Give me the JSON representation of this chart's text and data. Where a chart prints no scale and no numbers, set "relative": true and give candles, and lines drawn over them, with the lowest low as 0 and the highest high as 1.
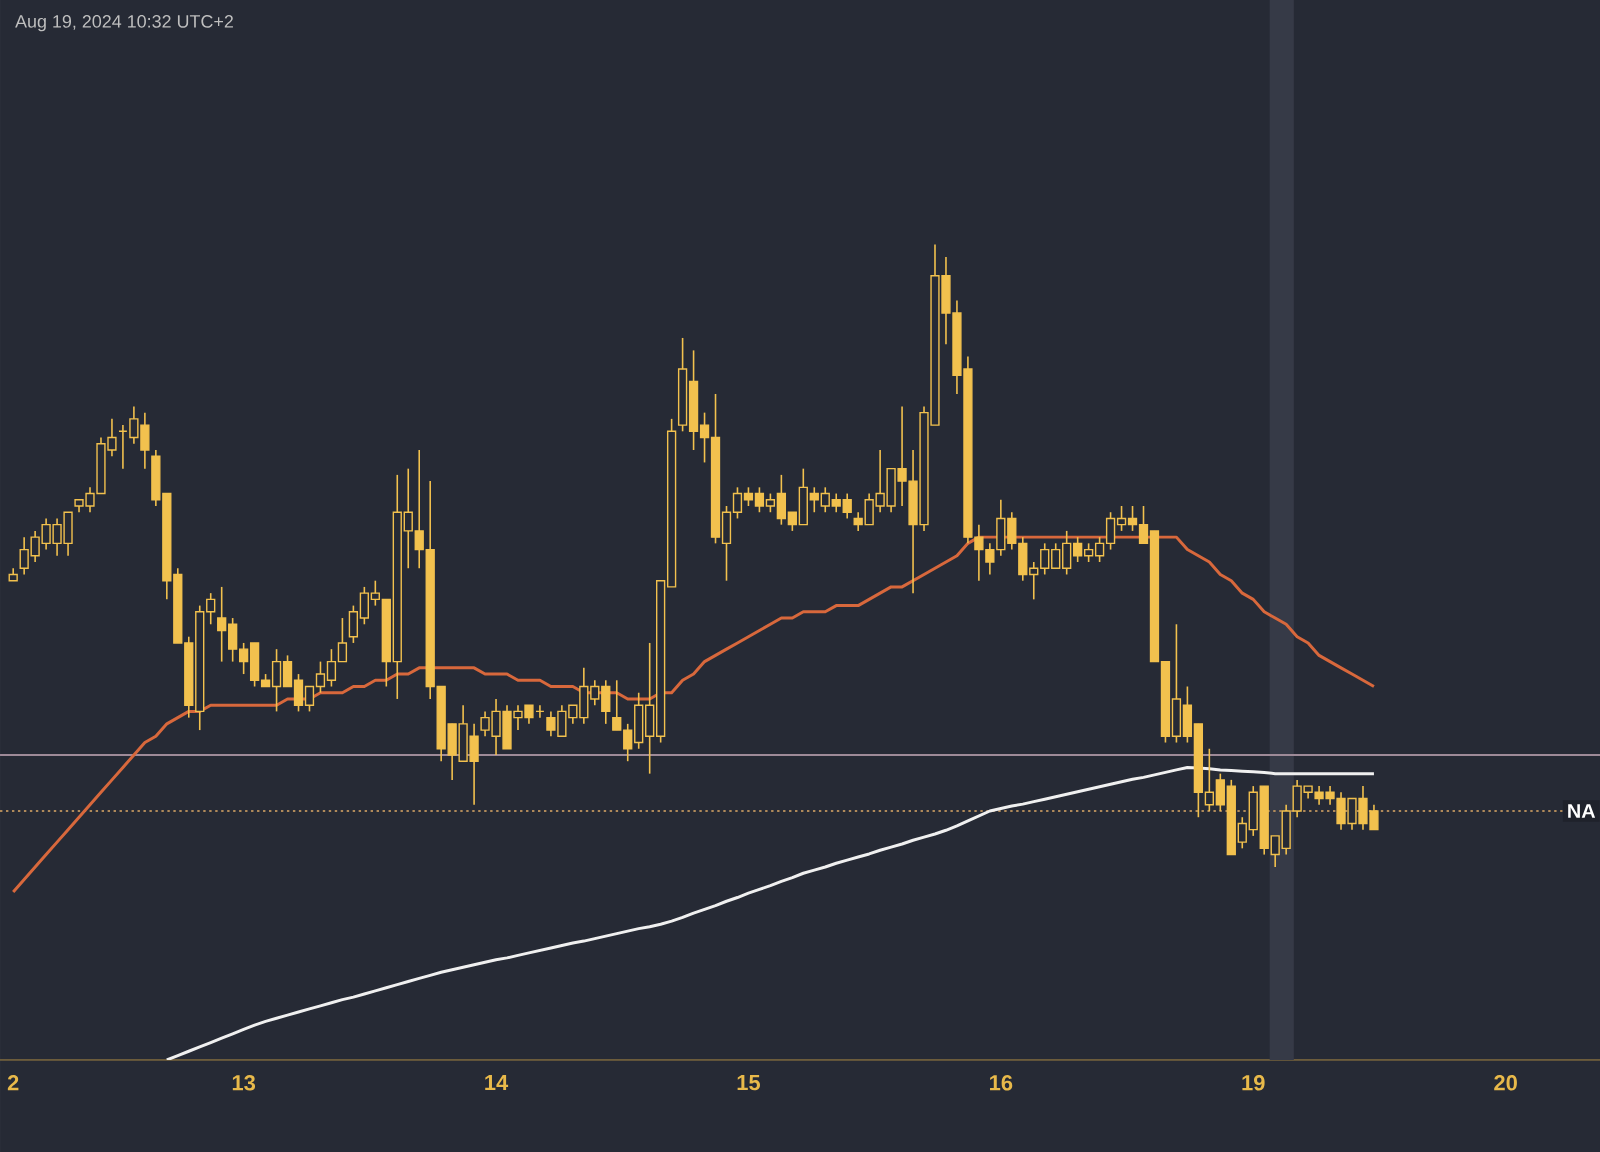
{
  "chart_data": {
    "type": "candlestick",
    "relative": true,
    "color": "#f2c14e",
    "annotations": [
      "Aug 19, 2024 10:32 UTC+2"
    ],
    "categories": [
      "2",
      null,
      null,
      null,
      null,
      null,
      null,
      null,
      null,
      null,
      null,
      null,
      null,
      null,
      null,
      null,
      null,
      null,
      null,
      null,
      null,
      "13",
      null,
      null,
      null,
      null,
      null,
      null,
      null,
      null,
      null,
      null,
      null,
      null,
      null,
      null,
      null,
      null,
      null,
      null,
      null,
      null,
      null,
      null,
      "14",
      null,
      null,
      null,
      null,
      null,
      null,
      null,
      null,
      null,
      null,
      null,
      null,
      null,
      null,
      null,
      null,
      null,
      null,
      null,
      null,
      null,
      null,
      "15",
      null,
      null,
      null,
      null,
      null,
      null,
      null,
      null,
      null,
      null,
      null,
      null,
      null,
      null,
      null,
      null,
      null,
      null,
      null,
      null,
      null,
      null,
      "16",
      null,
      null,
      null,
      null,
      null,
      null,
      null,
      null,
      null,
      null,
      null,
      null,
      null,
      null,
      null,
      null,
      null,
      null,
      null,
      null,
      null,
      null,
      "19",
      null,
      null,
      null,
      null,
      null,
      null,
      null,
      null,
      null,
      null,
      null,
      null,
      null,
      null,
      null,
      null,
      null,
      null,
      null,
      null,
      null,
      null,
      "20"
    ],
    "ohlc": [
      [
        0.46,
        0.48,
        0.46,
        0.47
      ],
      [
        0.48,
        0.53,
        0.47,
        0.51
      ],
      [
        0.5,
        0.54,
        0.49,
        0.53
      ],
      [
        0.52,
        0.56,
        0.51,
        0.55
      ],
      [
        0.52,
        0.56,
        0.5,
        0.55
      ],
      [
        0.52,
        0.57,
        0.5,
        0.57
      ],
      [
        0.58,
        0.59,
        0.57,
        0.59
      ],
      [
        0.58,
        0.61,
        0.57,
        0.6
      ],
      [
        0.6,
        0.69,
        0.6,
        0.68
      ],
      [
        0.67,
        0.72,
        0.66,
        0.69
      ],
      [
        0.7,
        0.71,
        0.64,
        0.7
      ],
      [
        0.69,
        0.74,
        0.68,
        0.72
      ],
      [
        0.71,
        0.73,
        0.64,
        0.67
      ],
      [
        0.66,
        0.67,
        0.58,
        0.59
      ],
      [
        0.6,
        0.6,
        0.43,
        0.46
      ],
      [
        0.47,
        0.48,
        0.36,
        0.36
      ],
      [
        0.36,
        0.37,
        0.24,
        0.26
      ],
      [
        0.25,
        0.42,
        0.22,
        0.41
      ],
      [
        0.41,
        0.44,
        0.39,
        0.43
      ],
      [
        0.4,
        0.45,
        0.33,
        0.38
      ],
      [
        0.39,
        0.4,
        0.33,
        0.35
      ],
      [
        0.35,
        0.36,
        0.31,
        0.33
      ],
      [
        0.36,
        0.36,
        0.29,
        0.3
      ],
      [
        0.3,
        0.31,
        0.29,
        0.29
      ],
      [
        0.29,
        0.35,
        0.25,
        0.33
      ],
      [
        0.33,
        0.34,
        0.29,
        0.29
      ],
      [
        0.3,
        0.31,
        0.25,
        0.26
      ],
      [
        0.26,
        0.29,
        0.25,
        0.29
      ],
      [
        0.29,
        0.33,
        0.28,
        0.31
      ],
      [
        0.3,
        0.35,
        0.29,
        0.33
      ],
      [
        0.33,
        0.4,
        0.33,
        0.36
      ],
      [
        0.37,
        0.42,
        0.36,
        0.41
      ],
      [
        0.4,
        0.45,
        0.39,
        0.44
      ],
      [
        0.43,
        0.46,
        0.42,
        0.44
      ],
      [
        0.43,
        0.43,
        0.29,
        0.33
      ],
      [
        0.33,
        0.63,
        0.27,
        0.57
      ],
      [
        0.54,
        0.64,
        0.48,
        0.57
      ],
      [
        0.54,
        0.67,
        0.48,
        0.51
      ],
      [
        0.51,
        0.62,
        0.27,
        0.29
      ],
      [
        0.29,
        0.29,
        0.17,
        0.19
      ],
      [
        0.23,
        0.23,
        0.14,
        0.18
      ],
      [
        0.17,
        0.26,
        0.17,
        0.23
      ],
      [
        0.21,
        0.23,
        0.1,
        0.17
      ],
      [
        0.22,
        0.25,
        0.21,
        0.24
      ],
      [
        0.21,
        0.27,
        0.18,
        0.25
      ],
      [
        0.25,
        0.26,
        0.19,
        0.19
      ],
      [
        0.24,
        0.26,
        0.22,
        0.25
      ],
      [
        0.26,
        0.26,
        0.23,
        0.24
      ],
      [
        0.25,
        0.26,
        0.24,
        0.25
      ],
      [
        0.24,
        0.25,
        0.21,
        0.22
      ],
      [
        0.21,
        0.26,
        0.21,
        0.25
      ],
      [
        0.24,
        0.26,
        0.23,
        0.26
      ],
      [
        0.24,
        0.32,
        0.23,
        0.29
      ],
      [
        0.27,
        0.3,
        0.26,
        0.29
      ],
      [
        0.29,
        0.3,
        0.23,
        0.25
      ],
      [
        0.24,
        0.3,
        0.22,
        0.22
      ],
      [
        0.22,
        0.23,
        0.17,
        0.19
      ],
      [
        0.2,
        0.28,
        0.19,
        0.26
      ],
      [
        0.21,
        0.36,
        0.15,
        0.26
      ],
      [
        0.21,
        0.46,
        0.2,
        0.46
      ],
      [
        0.45,
        0.72,
        0.45,
        0.7
      ],
      [
        0.71,
        0.85,
        0.7,
        0.8
      ],
      [
        0.78,
        0.83,
        0.67,
        0.7
      ],
      [
        0.71,
        0.73,
        0.65,
        0.69
      ],
      [
        0.69,
        0.76,
        0.52,
        0.53
      ],
      [
        0.52,
        0.58,
        0.46,
        0.57
      ],
      [
        0.57,
        0.61,
        0.56,
        0.6
      ],
      [
        0.6,
        0.61,
        0.58,
        0.59
      ],
      [
        0.6,
        0.61,
        0.57,
        0.58
      ],
      [
        0.58,
        0.6,
        0.57,
        0.59
      ],
      [
        0.6,
        0.63,
        0.55,
        0.56
      ],
      [
        0.57,
        0.57,
        0.54,
        0.55
      ],
      [
        0.55,
        0.64,
        0.55,
        0.61
      ],
      [
        0.6,
        0.61,
        0.57,
        0.59
      ],
      [
        0.58,
        0.61,
        0.57,
        0.6
      ],
      [
        0.59,
        0.6,
        0.57,
        0.58
      ],
      [
        0.59,
        0.6,
        0.56,
        0.57
      ],
      [
        0.56,
        0.57,
        0.54,
        0.55
      ],
      [
        0.55,
        0.6,
        0.55,
        0.59
      ],
      [
        0.58,
        0.67,
        0.57,
        0.6
      ],
      [
        0.58,
        0.64,
        0.57,
        0.64
      ],
      [
        0.64,
        0.74,
        0.58,
        0.62
      ],
      [
        0.62,
        0.67,
        0.44,
        0.55
      ],
      [
        0.55,
        0.74,
        0.54,
        0.73
      ],
      [
        0.71,
        1,
        0.71,
        0.95
      ],
      [
        0.95,
        0.98,
        0.84,
        0.89
      ],
      [
        0.89,
        0.91,
        0.76,
        0.79
      ],
      [
        0.8,
        0.82,
        0.52,
        0.53
      ],
      [
        0.53,
        0.55,
        0.46,
        0.51
      ],
      [
        0.51,
        0.52,
        0.47,
        0.49
      ],
      [
        0.51,
        0.59,
        0.5,
        0.56
      ],
      [
        0.56,
        0.57,
        0.51,
        0.52
      ],
      [
        0.52,
        0.53,
        0.46,
        0.47
      ],
      [
        0.47,
        0.49,
        0.43,
        0.48
      ],
      [
        0.48,
        0.52,
        0.47,
        0.51
      ],
      [
        0.48,
        0.52,
        0.48,
        0.51
      ],
      [
        0.48,
        0.54,
        0.47,
        0.52
      ],
      [
        0.52,
        0.53,
        0.49,
        0.5
      ],
      [
        0.5,
        0.52,
        0.49,
        0.51
      ],
      [
        0.5,
        0.53,
        0.49,
        0.52
      ],
      [
        0.52,
        0.57,
        0.51,
        0.56
      ],
      [
        0.55,
        0.58,
        0.54,
        0.56
      ],
      [
        0.56,
        0.58,
        0.54,
        0.55
      ],
      [
        0.55,
        0.58,
        0.52,
        0.52
      ],
      [
        0.54,
        0.54,
        0.33,
        0.33
      ],
      [
        0.33,
        0.33,
        0.2,
        0.21
      ],
      [
        0.21,
        0.39,
        0.2,
        0.27
      ],
      [
        0.26,
        0.29,
        0.2,
        0.21
      ],
      [
        0.23,
        0.23,
        0.08,
        0.12
      ],
      [
        0.1,
        0.19,
        0.09,
        0.12
      ],
      [
        0.14,
        0.15,
        0.09,
        0.1
      ],
      [
        0.13,
        0.14,
        0.02,
        0.02
      ],
      [
        0.04,
        0.08,
        0.03,
        0.07
      ],
      [
        0.06,
        0.13,
        0.05,
        0.12
      ],
      [
        0.13,
        0.13,
        0.02,
        0.03
      ],
      [
        0.02,
        0.05,
        0,
        0.05
      ],
      [
        0.03,
        0.1,
        0.02,
        0.09
      ],
      [
        0.09,
        0.14,
        0.08,
        0.13
      ],
      [
        0.12,
        0.13,
        0.11,
        0.13
      ],
      [
        0.12,
        0.13,
        0.1,
        0.11
      ],
      [
        0.12,
        0.13,
        0.1,
        0.11
      ],
      [
        0.11,
        0.12,
        0.06,
        0.07
      ],
      [
        0.07,
        0.11,
        0.06,
        0.11
      ],
      [
        0.11,
        0.13,
        0.06,
        0.07
      ],
      [
        0.09,
        0.1,
        0.06,
        0.06
      ],
      null,
      null,
      null,
      null,
      null,
      null,
      null,
      null,
      null,
      null,
      null,
      null
    ],
    "series": [
      {
        "type": "line",
        "color": "#d8683c",
        "values": [
          -0.04,
          -0.02,
          0.0,
          0.02,
          0.04,
          0.06,
          0.08,
          0.1,
          0.12,
          0.14,
          0.16,
          0.18,
          0.2,
          0.21,
          0.23,
          0.24,
          0.25,
          0.25,
          0.26,
          0.26,
          0.26,
          0.26,
          0.26,
          0.26,
          0.26,
          0.27,
          0.27,
          0.27,
          0.28,
          0.28,
          0.28,
          0.29,
          0.29,
          0.3,
          0.3,
          0.31,
          0.31,
          0.32,
          0.32,
          0.32,
          0.32,
          0.32,
          0.32,
          0.31,
          0.31,
          0.31,
          0.3,
          0.3,
          0.3,
          0.29,
          0.29,
          0.29,
          0.28,
          0.28,
          0.28,
          0.28,
          0.27,
          0.27,
          0.27,
          0.28,
          0.28,
          0.3,
          0.31,
          0.33,
          0.34,
          0.35,
          0.36,
          0.37,
          0.38,
          0.39,
          0.4,
          0.4,
          0.41,
          0.41,
          0.41,
          0.42,
          0.42,
          0.42,
          0.43,
          0.44,
          0.45,
          0.45,
          0.46,
          0.47,
          0.48,
          0.49,
          0.5,
          0.52,
          0.53,
          0.53,
          0.53,
          0.53,
          0.53,
          0.53,
          0.53,
          0.53,
          0.53,
          0.53,
          0.53,
          0.53,
          0.53,
          0.53,
          0.53,
          0.53,
          0.53,
          0.53,
          0.53,
          0.51,
          0.5,
          0.49,
          0.47,
          0.46,
          0.44,
          0.43,
          0.41,
          0.4,
          0.39,
          0.37,
          0.36,
          0.34,
          0.33,
          0.32,
          0.31,
          0.3,
          0.29,
          null,
          null,
          null,
          null,
          null,
          null,
          null,
          null,
          null,
          null,
          null,
          null
        ]
      },
      {
        "type": "line",
        "color": "#f0f0f0",
        "values": [
          null,
          null,
          null,
          null,
          null,
          null,
          null,
          null,
          null,
          null,
          null,
          null,
          null,
          null,
          -0.31,
          -0.303,
          -0.296,
          -0.289,
          -0.282,
          -0.275,
          -0.268,
          -0.261,
          -0.254,
          -0.248,
          -0.243,
          -0.238,
          -0.233,
          -0.228,
          -0.223,
          -0.218,
          -0.213,
          -0.209,
          -0.204,
          -0.199,
          -0.194,
          -0.189,
          -0.184,
          -0.179,
          -0.174,
          -0.169,
          -0.165,
          -0.161,
          -0.157,
          -0.153,
          -0.149,
          -0.146,
          -0.142,
          -0.138,
          -0.134,
          -0.13,
          -0.126,
          -0.122,
          -0.119,
          -0.115,
          -0.111,
          -0.107,
          -0.103,
          -0.099,
          -0.096,
          -0.092,
          -0.087,
          -0.081,
          -0.074,
          -0.068,
          -0.062,
          -0.055,
          -0.049,
          -0.042,
          -0.036,
          -0.03,
          -0.023,
          -0.017,
          -0.01,
          -0.005,
          0.0,
          0.006,
          0.011,
          0.016,
          0.021,
          0.027,
          0.032,
          0.037,
          0.043,
          0.048,
          0.053,
          0.059,
          0.066,
          0.074,
          0.082,
          0.09,
          0.094,
          0.098,
          0.101,
          0.105,
          0.109,
          0.113,
          0.117,
          0.121,
          0.125,
          0.129,
          0.133,
          0.137,
          0.141,
          0.144,
          0.148,
          0.152,
          0.156,
          0.16,
          0.159,
          0.158,
          0.156,
          0.155,
          0.154,
          0.153,
          0.152,
          0.15,
          0.15,
          0.15,
          0.15,
          0.15,
          0.15,
          0.15,
          0.15,
          0.15,
          0.15,
          null,
          null,
          null,
          null,
          null,
          null,
          null,
          null,
          null,
          null,
          null,
          null
        ]
      }
    ],
    "ref_lines": [
      {
        "axis": "y",
        "value": 0.18,
        "color": "#9e8a98"
      },
      {
        "axis": "y",
        "value": 0.09,
        "label": "NA",
        "color": "#b08a5a",
        "line_style": "dotted"
      }
    ]
  }
}
